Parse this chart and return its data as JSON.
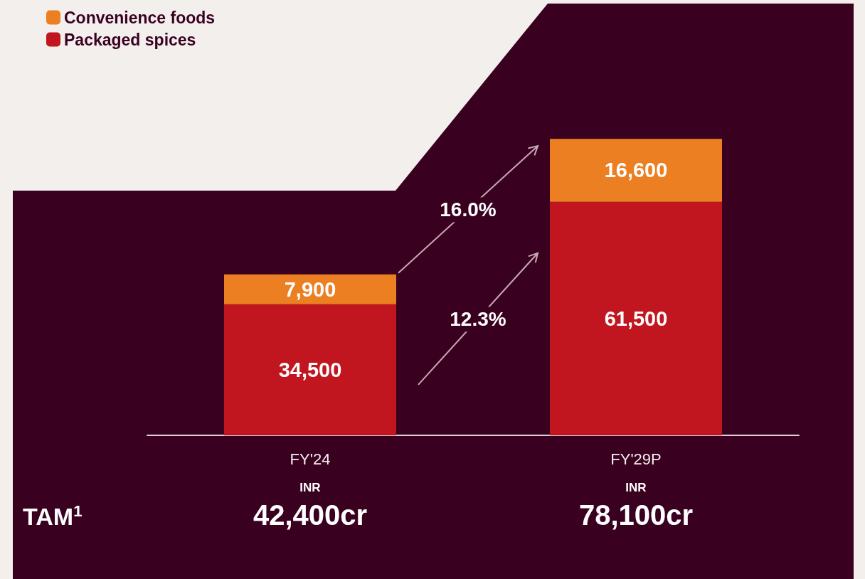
{
  "chart_data": {
    "type": "bar",
    "stacked": true,
    "categories": [
      "FY'24",
      "FY'29P"
    ],
    "series": [
      {
        "name": "Packaged spices",
        "color": "#c1161f",
        "values": [
          34500,
          61500
        ],
        "value_labels": [
          "34,500",
          "61,500"
        ]
      },
      {
        "name": "Convenience foods",
        "color": "#ec7f22",
        "values": [
          7900,
          16600
        ],
        "value_labels": [
          "7,900",
          "16,600"
        ]
      }
    ],
    "totals": [
      "42,400cr",
      "78,100cr"
    ],
    "legend": "top left",
    "grid": false,
    "annotations": [
      "16.0%",
      "12.3%",
      "INR",
      "INR",
      "TAM$^{1}$"
    ]
  }
}
